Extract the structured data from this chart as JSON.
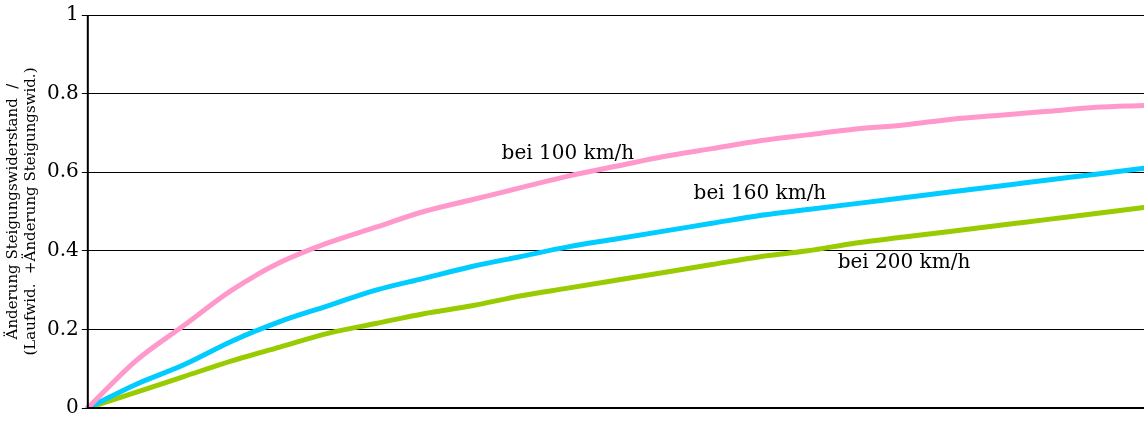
{
  "chart_data": {
    "type": "line",
    "ylabel": "Änderung Steigungswiderstand  /\n(Laufwid.  +Änderung Steigungswid.)",
    "categories": [
      null,
      null,
      null,
      null,
      null,
      null,
      null,
      null,
      null,
      null,
      null,
      null,
      null,
      null,
      null,
      null,
      null,
      null,
      null,
      null,
      null,
      null,
      null
    ],
    "series": [
      {
        "name": "bei 100 km/h",
        "color": "#ff99cc",
        "values": [
          0,
          0.12,
          0.21,
          0.3,
          0.37,
          0.42,
          0.46,
          0.5,
          0.53,
          0.56,
          0.59,
          0.615,
          0.64,
          0.66,
          0.68,
          0.695,
          0.71,
          0.72,
          0.735,
          0.745,
          0.755,
          0.765,
          0.77
        ]
      },
      {
        "name": "bei 160 km/h",
        "color": "#00ccff",
        "values": [
          0,
          0.06,
          0.11,
          0.17,
          0.22,
          0.26,
          0.3,
          0.33,
          0.36,
          0.385,
          0.41,
          0.43,
          0.45,
          0.47,
          0.49,
          0.505,
          0.52,
          0.535,
          0.55,
          0.565,
          0.58,
          0.595,
          0.61
        ]
      },
      {
        "name": "bei 200 km/h",
        "color": "#99cc00",
        "values": [
          0,
          0.04,
          0.08,
          0.12,
          0.155,
          0.19,
          0.215,
          0.24,
          0.26,
          0.285,
          0.305,
          0.325,
          0.345,
          0.365,
          0.385,
          0.4,
          0.42,
          0.435,
          0.45,
          0.465,
          0.48,
          0.495,
          0.51
        ]
      }
    ],
    "ylim": [
      0,
      1
    ],
    "yticks": [
      0,
      0.2,
      0.4,
      0.6,
      0.8,
      1
    ],
    "grid": "y",
    "legend": false,
    "marker": "none",
    "line_style": "solid",
    "tick_labels": "y"
  }
}
